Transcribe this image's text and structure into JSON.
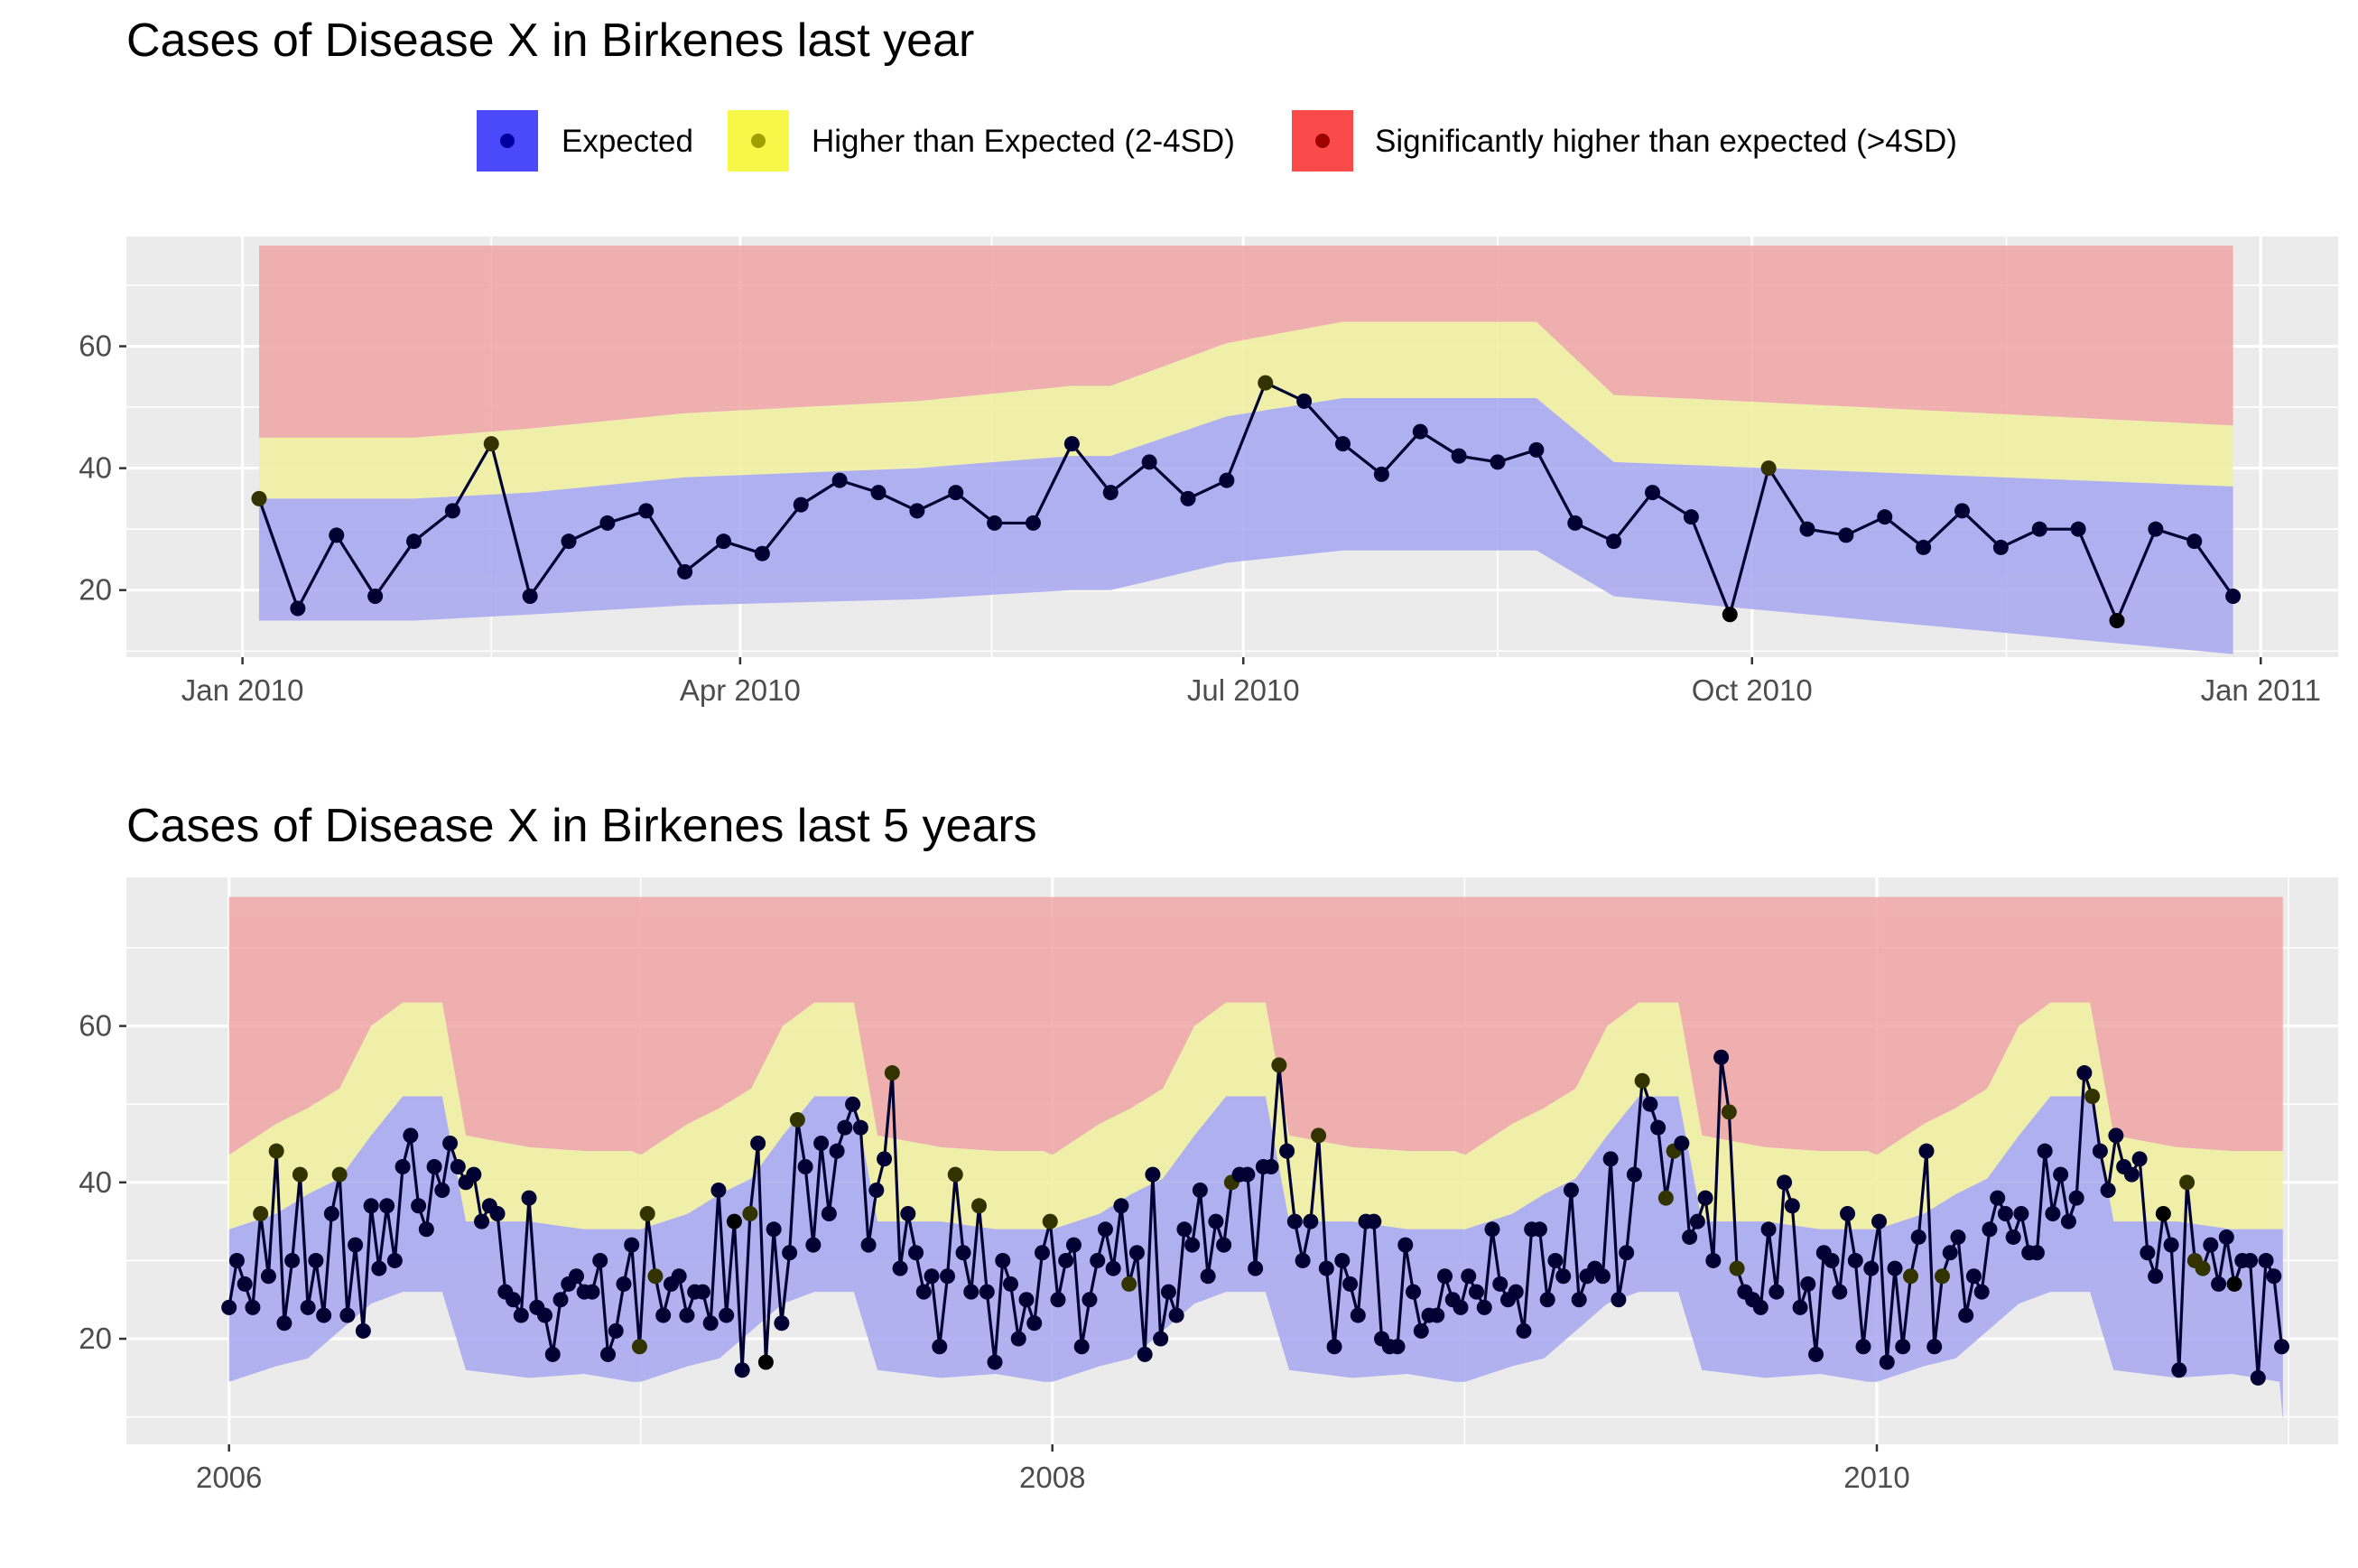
{
  "colors": {
    "panel_bg": "#ebebeb",
    "grid": "#ffffff",
    "band_expected": "#a3a4f0",
    "band_higher": "#f0f09b",
    "band_significant": "#f0a3a3",
    "line": "#000033",
    "point_expected": "#000033",
    "point_higher": "#333300",
    "point_significant": "#000000"
  },
  "legend": {
    "items": [
      {
        "label": "Expected",
        "key_color": "#4a4afa",
        "dot_color": "#0000a0"
      },
      {
        "label": "Higher than Expected (2-4SD)",
        "key_color": "#f7f74a",
        "dot_color": "#a0a000"
      },
      {
        "label": "Significantly higher than expected (>4SD)",
        "key_color": "#fa4a4a",
        "dot_color": "#a00000"
      }
    ]
  },
  "chart_data": [
    {
      "type": "line",
      "title": "Cases of Disease X in Birkenes last year",
      "xlabel": "",
      "ylabel": "",
      "x_axis_type": "date",
      "xlim": [
        "2009-12-11",
        "2011-01-15"
      ],
      "ylim": [
        9,
        78
      ],
      "y_ticks": [
        20,
        40,
        60
      ],
      "x_ticks": [
        {
          "date": "2010-01-01",
          "label": "Jan 2010"
        },
        {
          "date": "2010-04-01",
          "label": "Apr 2010"
        },
        {
          "date": "2010-07-01",
          "label": "Jul 2010"
        },
        {
          "date": "2010-10-01",
          "label": "Oct 2010"
        },
        {
          "date": "2011-01-01",
          "label": "Jan 2011"
        }
      ],
      "grid": true,
      "legend_position": "top",
      "bands": {
        "dates": [
          "2010-01-04",
          "2010-02-01",
          "2010-02-22",
          "2010-03-22",
          "2010-05-03",
          "2010-05-31",
          "2010-06-07",
          "2010-06-28",
          "2010-07-19",
          "2010-08-23",
          "2010-09-06",
          "2010-12-27"
        ],
        "lower_expected": [
          15,
          15,
          16,
          17.5,
          18.5,
          20,
          20,
          24.5,
          26.5,
          26.5,
          19,
          16
        ],
        "upper_expected": [
          35,
          35,
          36,
          38.5,
          40,
          42,
          42,
          48.5,
          51.5,
          51.5,
          41,
          37
        ],
        "upper_higher": [
          45,
          45,
          46.5,
          49,
          51,
          53.5,
          53.5,
          60.5,
          64,
          64,
          52,
          47
        ],
        "upper_significant": 76.5,
        "series_lower_min": 9.5
      },
      "series": [
        {
          "dates": [
            "2010-01-04",
            "2010-01-11",
            "2010-01-18",
            "2010-01-25",
            "2010-02-01",
            "2010-02-08",
            "2010-02-15",
            "2010-02-22",
            "2010-03-01",
            "2010-03-08",
            "2010-03-15",
            "2010-03-22",
            "2010-03-29",
            "2010-04-05",
            "2010-04-12",
            "2010-04-19",
            "2010-04-26",
            "2010-05-03",
            "2010-05-10",
            "2010-05-17",
            "2010-05-24",
            "2010-05-31",
            "2010-06-07",
            "2010-06-14",
            "2010-06-21",
            "2010-06-28",
            "2010-07-05",
            "2010-07-12",
            "2010-07-19",
            "2010-07-26",
            "2010-08-02",
            "2010-08-09",
            "2010-08-16",
            "2010-08-23",
            "2010-08-30",
            "2010-09-06",
            "2010-09-13",
            "2010-09-20",
            "2010-09-27",
            "2010-10-04",
            "2010-10-11",
            "2010-10-18",
            "2010-10-25",
            "2010-11-01",
            "2010-11-08",
            "2010-11-15",
            "2010-11-22",
            "2010-11-29",
            "2010-12-06",
            "2010-12-13",
            "2010-12-20",
            "2010-12-27"
          ],
          "values": [
            35,
            17,
            29,
            19,
            28,
            33,
            44,
            19,
            28,
            31,
            33,
            23,
            28,
            26,
            34,
            38,
            36,
            33,
            36,
            31,
            31,
            44,
            36,
            41,
            35,
            38,
            54,
            51,
            44,
            39,
            46,
            42,
            41,
            43,
            31,
            28,
            36,
            32,
            16,
            40,
            30,
            29,
            32,
            27,
            33,
            27,
            30,
            30,
            15,
            30,
            28,
            19
          ],
          "status": [
            "higher",
            "expected",
            "expected",
            "expected",
            "expected",
            "expected",
            "higher",
            "expected",
            "expected",
            "expected",
            "expected",
            "expected",
            "expected",
            "expected",
            "expected",
            "expected",
            "expected",
            "expected",
            "expected",
            "expected",
            "expected",
            "expected",
            "expected",
            "expected",
            "expected",
            "expected",
            "higher",
            "expected",
            "expected",
            "expected",
            "expected",
            "expected",
            "expected",
            "expected",
            "expected",
            "expected",
            "expected",
            "expected",
            "significant",
            "higher",
            "expected",
            "expected",
            "expected",
            "expected",
            "expected",
            "expected",
            "expected",
            "expected",
            "significant",
            "expected",
            "expected",
            "expected"
          ]
        }
      ]
    },
    {
      "type": "line",
      "title": "Cases of Disease X in Birkenes last 5 years",
      "xlabel": "",
      "ylabel": "",
      "x_axis_type": "date",
      "xlim": [
        "2005-10-02",
        "2011-02-14"
      ],
      "ylim": [
        6.5,
        79
      ],
      "y_ticks": [
        20,
        40,
        60
      ],
      "x_ticks": [
        {
          "date": "2006-01-01",
          "label": "2006"
        },
        {
          "date": "2008-01-01",
          "label": "2008"
        },
        {
          "date": "2010-01-01",
          "label": "2010"
        }
      ],
      "grid": true,
      "bands": {
        "seasonal_template": {
          "week_offsets": [
            0,
            6,
            10,
            14,
            18,
            22,
            27,
            30,
            38,
            45,
            51
          ],
          "lower_expected": [
            14.5,
            16.5,
            17.5,
            21,
            24.5,
            26,
            26,
            16,
            15,
            15.5,
            14.5
          ],
          "upper_expected": [
            34,
            36,
            38.5,
            40.5,
            46,
            51,
            51,
            35,
            35,
            34,
            34
          ],
          "upper_higher": [
            43.5,
            47.5,
            49.5,
            52,
            60,
            63,
            63,
            46,
            44.5,
            44,
            44
          ]
        },
        "years": [
          2006,
          2007,
          2008,
          2009,
          2010
        ],
        "upper_significant": 76.5
      },
      "series": [
        {
          "dates_from": "2006-01-01",
          "step_days": 7,
          "values": [
            24,
            30,
            27,
            24,
            36,
            28,
            44,
            22,
            30,
            41,
            24,
            30,
            23,
            36,
            41,
            23,
            32,
            21,
            37,
            29,
            37,
            30,
            42,
            46,
            37,
            34,
            42,
            39,
            45,
            42,
            40,
            41,
            35,
            37,
            36,
            26,
            25,
            23,
            38,
            24,
            23,
            18,
            25,
            27,
            28,
            26,
            26,
            30,
            18,
            21,
            27,
            32,
            19,
            36,
            28,
            23,
            27,
            28,
            23,
            26,
            26,
            22,
            39,
            23,
            35,
            16,
            36,
            45,
            17,
            34,
            22,
            31,
            48,
            42,
            32,
            45,
            36,
            44,
            47,
            50,
            47,
            32,
            39,
            43,
            54,
            29,
            36,
            31,
            26,
            28,
            19,
            28,
            41,
            31,
            26,
            37,
            26,
            17,
            30,
            27,
            20,
            25,
            22,
            31,
            35,
            25,
            30,
            32,
            19,
            25,
            30,
            34,
            29,
            37,
            27,
            31,
            18,
            41,
            20,
            26,
            23,
            34,
            32,
            39,
            28,
            35,
            32,
            40,
            41,
            41,
            29,
            42,
            42,
            55,
            44,
            35,
            30,
            35,
            46,
            29,
            19,
            30,
            27,
            23,
            35,
            35,
            20,
            19,
            19,
            32,
            26,
            21,
            23,
            23,
            28,
            25,
            24,
            28,
            26,
            24,
            34,
            27,
            25,
            26,
            21,
            34,
            34,
            25,
            30,
            28,
            39,
            25,
            28,
            29,
            28,
            43,
            25,
            31,
            41,
            53,
            50,
            47,
            38,
            44,
            45,
            33,
            35,
            38,
            30,
            56,
            49,
            29,
            26,
            25,
            24,
            34,
            26,
            40,
            37,
            24,
            27,
            18,
            31,
            30,
            26,
            36,
            30,
            19,
            29,
            35,
            17,
            29,
            19,
            28,
            33,
            44,
            19,
            28,
            31,
            33,
            23,
            28,
            26,
            34,
            38,
            36,
            33,
            36,
            31,
            31,
            44,
            36,
            41,
            35,
            38,
            54,
            51,
            44,
            39,
            46,
            42,
            41,
            43,
            31,
            28,
            36,
            32,
            16,
            40,
            30,
            29,
            32,
            27,
            33,
            27,
            30,
            30,
            15,
            30,
            28,
            19
          ],
          "higher_indices": [
            4,
            6,
            9,
            14,
            52,
            53,
            54,
            66,
            68,
            72,
            84,
            92,
            95,
            104,
            114,
            127,
            133,
            138,
            179,
            182,
            183,
            190,
            191,
            213,
            217,
            236,
            248,
            249,
            250
          ],
          "significant_indices": [
            64,
            68,
            245,
            254
          ]
        }
      ]
    }
  ]
}
